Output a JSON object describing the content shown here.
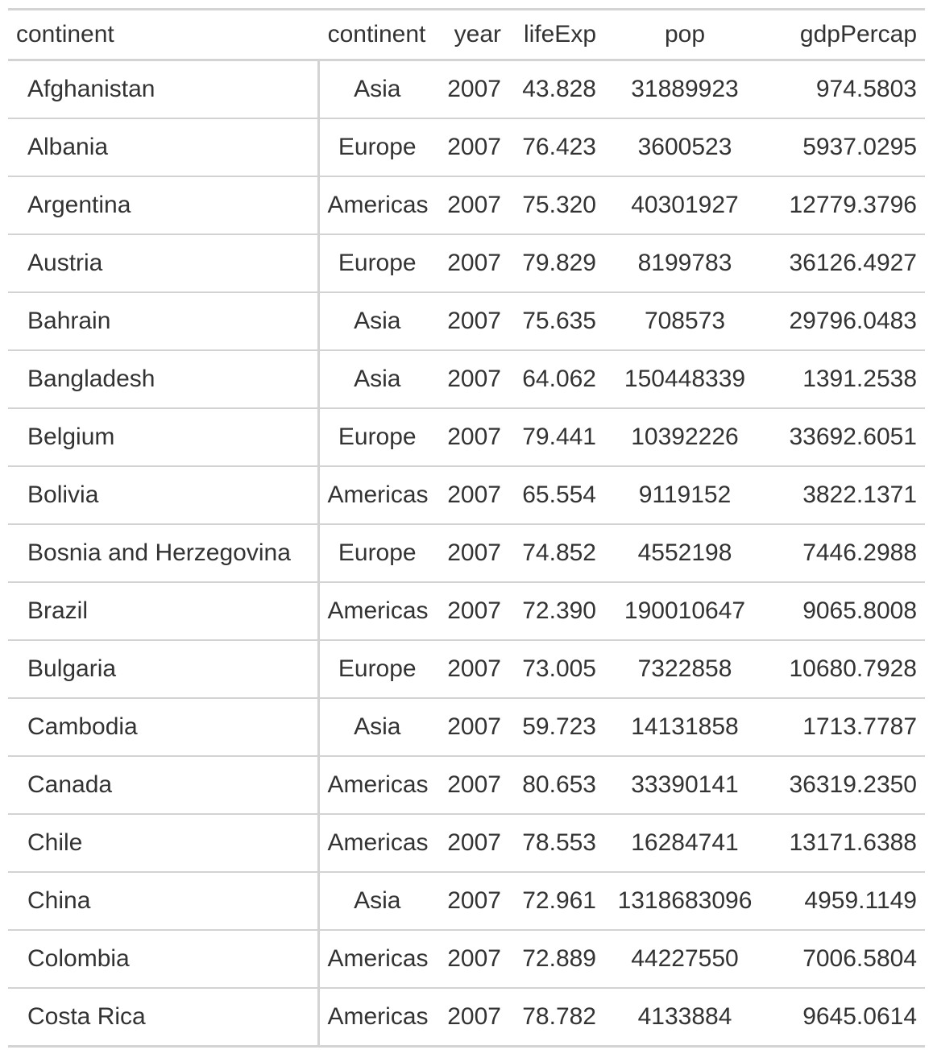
{
  "table": {
    "headers": [
      "continent",
      "continent",
      "year",
      "lifeExp",
      "pop",
      "gdpPercap"
    ],
    "rows": [
      [
        "Afghanistan",
        "Asia",
        "2007",
        "43.828",
        "31889923",
        "974.5803"
      ],
      [
        "Albania",
        "Europe",
        "2007",
        "76.423",
        "3600523",
        "5937.0295"
      ],
      [
        "Argentina",
        "Americas",
        "2007",
        "75.320",
        "40301927",
        "12779.3796"
      ],
      [
        "Austria",
        "Europe",
        "2007",
        "79.829",
        "8199783",
        "36126.4927"
      ],
      [
        "Bahrain",
        "Asia",
        "2007",
        "75.635",
        "708573",
        "29796.0483"
      ],
      [
        "Bangladesh",
        "Asia",
        "2007",
        "64.062",
        "150448339",
        "1391.2538"
      ],
      [
        "Belgium",
        "Europe",
        "2007",
        "79.441",
        "10392226",
        "33692.6051"
      ],
      [
        "Bolivia",
        "Americas",
        "2007",
        "65.554",
        "9119152",
        "3822.1371"
      ],
      [
        "Bosnia and Herzegovina",
        "Europe",
        "2007",
        "74.852",
        "4552198",
        "7446.2988"
      ],
      [
        "Brazil",
        "Americas",
        "2007",
        "72.390",
        "190010647",
        "9065.8008"
      ],
      [
        "Bulgaria",
        "Europe",
        "2007",
        "73.005",
        "7322858",
        "10680.7928"
      ],
      [
        "Cambodia",
        "Asia",
        "2007",
        "59.723",
        "14131858",
        "1713.7787"
      ],
      [
        "Canada",
        "Americas",
        "2007",
        "80.653",
        "33390141",
        "36319.2350"
      ],
      [
        "Chile",
        "Americas",
        "2007",
        "78.553",
        "16284741",
        "13171.6388"
      ],
      [
        "China",
        "Asia",
        "2007",
        "72.961",
        "1318683096",
        "4959.1149"
      ],
      [
        "Colombia",
        "Americas",
        "2007",
        "72.889",
        "44227550",
        "7006.5804"
      ],
      [
        "Costa Rica",
        "Americas",
        "2007",
        "78.782",
        "4133884",
        "9645.0614"
      ]
    ]
  }
}
